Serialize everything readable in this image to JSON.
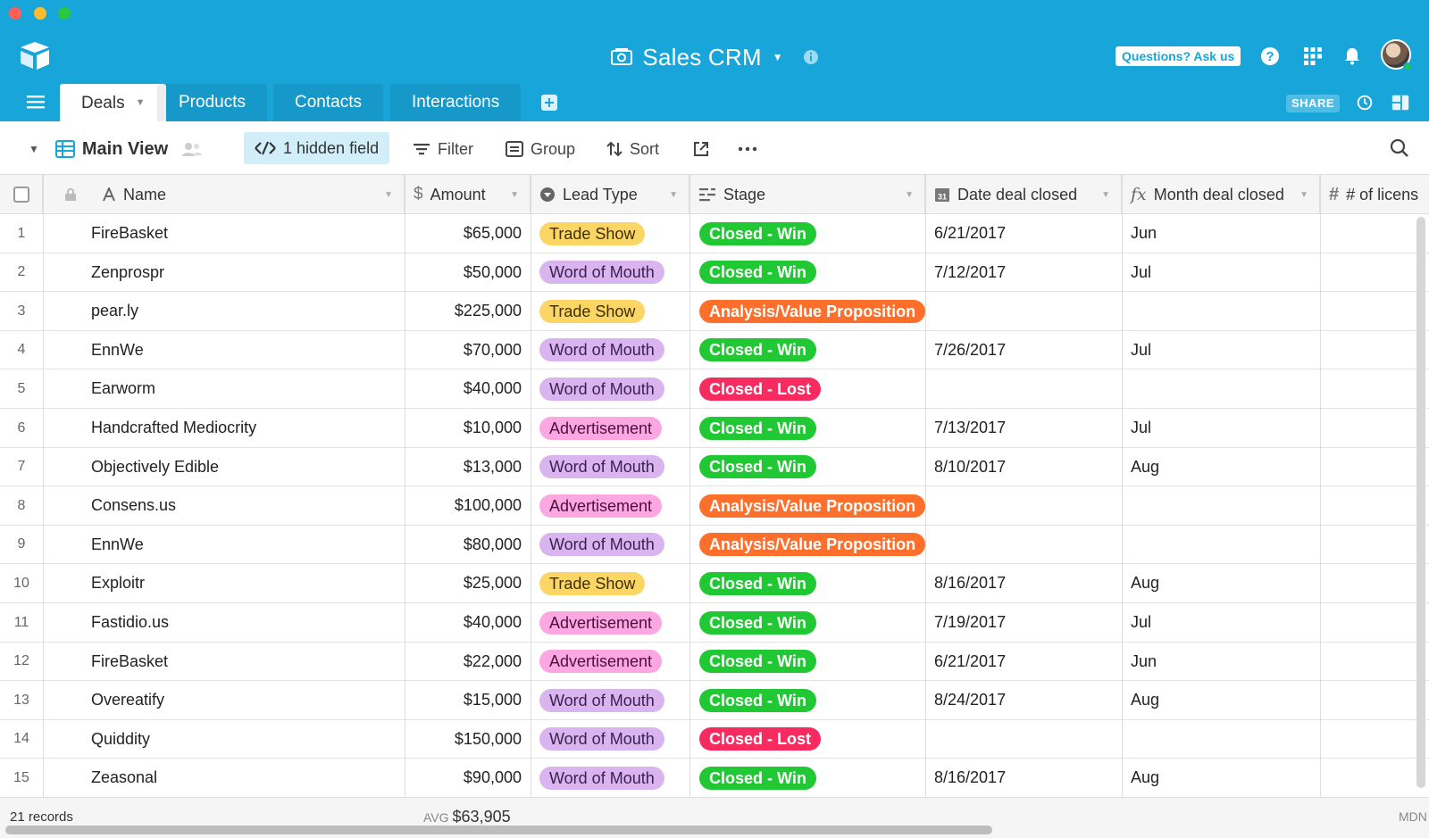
{
  "window": {
    "colors": {
      "close": "#fe5f57",
      "minimize": "#febc2e",
      "maximize": "#28c840",
      "header": "#18a5d9"
    }
  },
  "header": {
    "title": "Sales CRM",
    "questions_label": "Questions? Ask us",
    "share_label": "SHARE",
    "icons": [
      "logo-icon",
      "base-icon",
      "info-icon",
      "help-icon",
      "apps-grid-icon",
      "bell-icon",
      "history-icon",
      "blocks-icon"
    ]
  },
  "tabs": [
    {
      "label": "Deals",
      "active": true
    },
    {
      "label": "Products"
    },
    {
      "label": "Contacts"
    },
    {
      "label": "Interactions"
    }
  ],
  "viewbar": {
    "view_name": "Main View",
    "hidden_field": "1 hidden field",
    "filter": "Filter",
    "group": "Group",
    "sort": "Sort"
  },
  "columns": {
    "name": "Name",
    "amount": "Amount",
    "lead_type": "Lead Type",
    "stage": "Stage",
    "date_closed": "Date deal closed",
    "month_closed": "Month deal closed",
    "licenses": "# of licens"
  },
  "pill_colors": {
    "Trade Show": "#fcd664",
    "Word of Mouth": "#d9b4ef",
    "Advertisement": "#fca7e2",
    "Closed - Win": "#20c933",
    "Closed - Lost": "#f82b60",
    "Analysis/Value Proposition": "#ff6f2c"
  },
  "rows": [
    {
      "num": "1",
      "name": "FireBasket",
      "amount": "$65,000",
      "lead": "Trade Show",
      "stage": "Closed - Win",
      "date": "6/21/2017",
      "month": "Jun"
    },
    {
      "num": "2",
      "name": "Zenprospr",
      "amount": "$50,000",
      "lead": "Word of Mouth",
      "stage": "Closed - Win",
      "date": "7/12/2017",
      "month": "Jul"
    },
    {
      "num": "3",
      "name": "pear.ly",
      "amount": "$225,000",
      "lead": "Trade Show",
      "stage": "Analysis/Value Proposition",
      "date": "",
      "month": ""
    },
    {
      "num": "4",
      "name": "EnnWe",
      "amount": "$70,000",
      "lead": "Word of Mouth",
      "stage": "Closed - Win",
      "date": "7/26/2017",
      "month": "Jul"
    },
    {
      "num": "5",
      "name": "Earworm",
      "amount": "$40,000",
      "lead": "Word of Mouth",
      "stage": "Closed - Lost",
      "date": "",
      "month": ""
    },
    {
      "num": "6",
      "name": "Handcrafted Mediocrity",
      "amount": "$10,000",
      "lead": "Advertisement",
      "stage": "Closed - Win",
      "date": "7/13/2017",
      "month": "Jul"
    },
    {
      "num": "7",
      "name": "Objectively Edible",
      "amount": "$13,000",
      "lead": "Word of Mouth",
      "stage": "Closed - Win",
      "date": "8/10/2017",
      "month": "Aug"
    },
    {
      "num": "8",
      "name": "Consens.us",
      "amount": "$100,000",
      "lead": "Advertisement",
      "stage": "Analysis/Value Proposition",
      "date": "",
      "month": ""
    },
    {
      "num": "9",
      "name": "EnnWe",
      "amount": "$80,000",
      "lead": "Word of Mouth",
      "stage": "Analysis/Value Proposition",
      "date": "",
      "month": ""
    },
    {
      "num": "10",
      "name": "Exploitr",
      "amount": "$25,000",
      "lead": "Trade Show",
      "stage": "Closed - Win",
      "date": "8/16/2017",
      "month": "Aug"
    },
    {
      "num": "11",
      "name": "Fastidio.us",
      "amount": "$40,000",
      "lead": "Advertisement",
      "stage": "Closed - Win",
      "date": "7/19/2017",
      "month": "Jul"
    },
    {
      "num": "12",
      "name": "FireBasket",
      "amount": "$22,000",
      "lead": "Advertisement",
      "stage": "Closed - Win",
      "date": "6/21/2017",
      "month": "Jun"
    },
    {
      "num": "13",
      "name": "Overeatify",
      "amount": "$15,000",
      "lead": "Word of Mouth",
      "stage": "Closed - Win",
      "date": "8/24/2017",
      "month": "Aug"
    },
    {
      "num": "14",
      "name": "Quiddity",
      "amount": "$150,000",
      "lead": "Word of Mouth",
      "stage": "Closed - Lost",
      "date": "",
      "month": ""
    },
    {
      "num": "15",
      "name": "Zeasonal",
      "amount": "$90,000",
      "lead": "Word of Mouth",
      "stage": "Closed - Win",
      "date": "8/16/2017",
      "month": "Aug"
    }
  ],
  "footer": {
    "records": "21 records",
    "avg_label": "AVG",
    "avg_value": "$63,905",
    "right_text": "MDN"
  }
}
